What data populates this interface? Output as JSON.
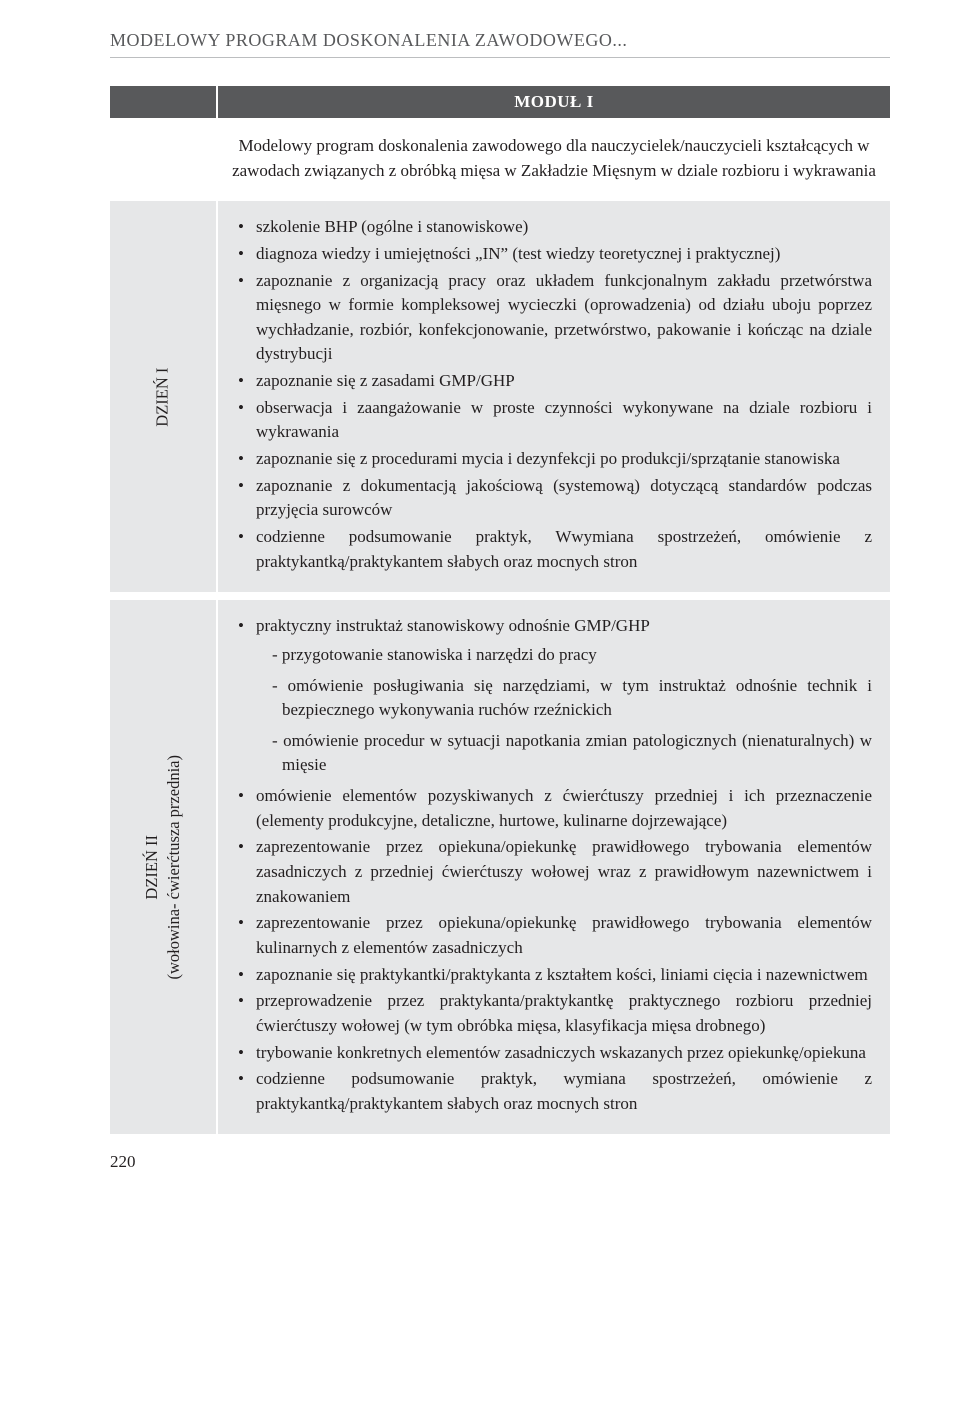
{
  "header": {
    "running_title": "MODELOWY PROGRAM DOSKONALENIA ZAWODOWEGO..."
  },
  "module": {
    "title": "MODUŁ I",
    "intro": "Modelowy program doskonalenia zawodowego dla nauczycielek/nauczycieli kształcących w zawodach związanych z obróbką mięsa  w Zakładzie Mięsnym w dziale rozbioru i wykrawania"
  },
  "day1": {
    "label": "DZIEŃ I",
    "items": [
      "szkolenie BHP (ogólne i stanowiskowe)",
      "diagnoza wiedzy i umiejętności „IN” (test wiedzy teoretycznej i praktycznej)",
      "zapoznanie z organizacją pracy oraz układem funkcjonalnym zakładu przetwórstwa mięsnego w formie kompleksowej wycieczki (oprowadzenia) od działu uboju poprzez wychładzanie, rozbiór, konfekcjonowanie, przetwórstwo, pakowanie i kończąc na dziale dystrybucji",
      "zapoznanie się z zasadami GMP/GHP",
      "obserwacja i zaangażowanie w proste czynności wykonywane na dziale rozbioru i wykrawania",
      "zapoznanie się z procedurami mycia i dezynfekcji po produkcji/sprzątanie stanowiska",
      "zapoznanie z dokumentacją jakościową (systemową) dotyczącą standardów podczas przyjęcia surowców",
      "codzienne podsumowanie praktyk, Wwymiana spostrzeżeń, omówienie z praktykantką/praktykantem słabych oraz mocnych stron"
    ]
  },
  "day2": {
    "label_line1": "DZIEŃ II",
    "label_line2": "(wołowina- ćwierćtusza przednia)",
    "lead_item": "praktyczny instruktaż stanowiskowy odnośnie GMP/GHP",
    "sub_items": [
      "- przygotowanie stanowiska i narzędzi do pracy",
      "- omówienie posługiwania się narzędziami, w tym instruktaż odnośnie technik i bezpiecznego wykonywania ruchów rzeźnickich",
      "- omówienie procedur w sytuacji napotkania zmian patologicznych (nienaturalnych) w mięsie"
    ],
    "items": [
      "omówienie elementów pozyskiwanych z ćwierćtuszy przedniej i ich przeznaczenie (elementy produkcyjne, detaliczne, hurtowe, kulinarne dojrzewające)",
      "zaprezentowanie przez opiekuna/opiekunkę prawidłowego trybowania elementów zasadniczych z przedniej ćwierćtuszy wołowej wraz z prawidłowym nazewnictwem i znakowaniem",
      "zaprezentowanie przez opiekuna/opiekunkę prawidłowego trybowania elementów kulinarnych z elementów zasadniczych",
      "zapoznanie się praktykantki/praktykanta z kształtem kości, liniami cięcia i nazewnictwem",
      "przeprowadzenie przez praktykanta/praktykantkę praktycznego rozbioru przedniej ćwierćtuszy wołowej (w tym obróbka mięsa, klasyfikacja mięsa drobnego)",
      "trybowanie konkretnych elementów zasadniczych wskazanych przez opiekunkę/opiekuna",
      "codzienne podsumowanie praktyk, wymiana spostrzeżeń, omówienie z praktykantką/praktykantem słabych oraz mocnych stron"
    ]
  },
  "footer": {
    "page_number": "220"
  },
  "colors": {
    "header_bar": "#58595b",
    "cell_bg": "#e6e7e8",
    "text": "#231f20",
    "running_head": "#58595b",
    "rule": "#bcbec0"
  }
}
